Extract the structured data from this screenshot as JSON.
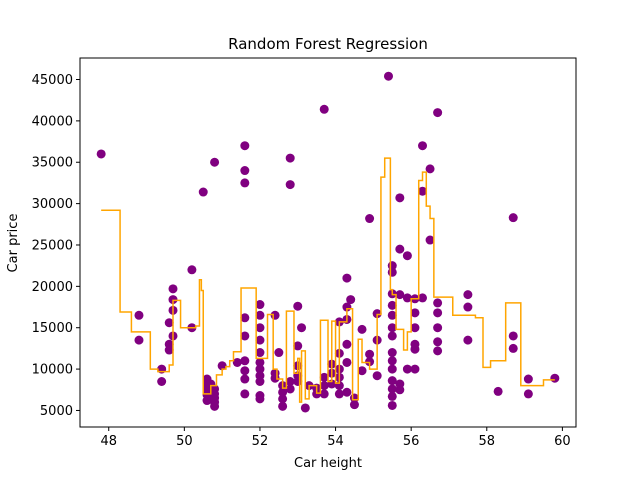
{
  "chart_data": {
    "type": "scatter",
    "title": "Random Forest Regression",
    "xlabel": "Car height",
    "ylabel": "Car price",
    "xlim": [
      47.24,
      60.36
    ],
    "ylim": [
      3000,
      47600
    ],
    "xticks": [
      48,
      50,
      52,
      54,
      56,
      58,
      60
    ],
    "yticks": [
      5000,
      10000,
      15000,
      20000,
      25000,
      30000,
      35000,
      40000,
      45000
    ],
    "grid": false,
    "colors": {
      "points": "#800080",
      "line": "#FFA500"
    },
    "series": [
      {
        "type": "scatter",
        "points": [
          [
            47.8,
            36000
          ],
          [
            48.8,
            16500
          ],
          [
            48.8,
            13500
          ],
          [
            49.4,
            10000
          ],
          [
            49.4,
            8500
          ],
          [
            49.6,
            15600
          ],
          [
            49.6,
            13000
          ],
          [
            49.6,
            12300
          ],
          [
            49.7,
            19700
          ],
          [
            49.7,
            18400
          ],
          [
            49.7,
            17100
          ],
          [
            49.7,
            14000
          ],
          [
            50.2,
            22000
          ],
          [
            50.2,
            15000
          ],
          [
            50.5,
            31400
          ],
          [
            50.6,
            8800
          ],
          [
            50.6,
            8000
          ],
          [
            50.6,
            7600
          ],
          [
            50.6,
            6900
          ],
          [
            50.6,
            6200
          ],
          [
            50.7,
            8200
          ],
          [
            50.8,
            35000
          ],
          [
            50.8,
            7600
          ],
          [
            50.8,
            7000
          ],
          [
            50.8,
            6500
          ],
          [
            50.8,
            6000
          ],
          [
            50.8,
            5500
          ],
          [
            51.0,
            10400
          ],
          [
            51.4,
            10800
          ],
          [
            51.6,
            37000
          ],
          [
            51.6,
            34000
          ],
          [
            51.6,
            32500
          ],
          [
            51.6,
            16200
          ],
          [
            51.6,
            14000
          ],
          [
            51.6,
            11000
          ],
          [
            51.6,
            9800
          ],
          [
            51.6,
            8800
          ],
          [
            51.6,
            7000
          ],
          [
            52.0,
            17800
          ],
          [
            52.0,
            16500
          ],
          [
            52.0,
            15000
          ],
          [
            52.0,
            13500
          ],
          [
            52.0,
            12000
          ],
          [
            52.0,
            10800
          ],
          [
            52.0,
            10000
          ],
          [
            52.0,
            9200
          ],
          [
            52.0,
            8500
          ],
          [
            52.0,
            6800
          ],
          [
            52.0,
            6400
          ],
          [
            52.4,
            16500
          ],
          [
            52.4,
            9500
          ],
          [
            52.4,
            8900
          ],
          [
            52.5,
            12000
          ],
          [
            52.6,
            8000
          ],
          [
            52.6,
            7200
          ],
          [
            52.6,
            6400
          ],
          [
            52.6,
            5500
          ],
          [
            52.8,
            35500
          ],
          [
            52.8,
            32300
          ],
          [
            52.8,
            8500
          ],
          [
            52.8,
            7600
          ],
          [
            53.0,
            17600
          ],
          [
            53.0,
            12800
          ],
          [
            53.0,
            10400
          ],
          [
            53.0,
            9200
          ],
          [
            53.0,
            8500
          ],
          [
            53.1,
            15000
          ],
          [
            53.2,
            5300
          ],
          [
            53.3,
            8000
          ],
          [
            53.5,
            7700
          ],
          [
            53.5,
            7000
          ],
          [
            53.7,
            41400
          ],
          [
            53.7,
            9000
          ],
          [
            53.7,
            8000
          ],
          [
            53.7,
            7000
          ],
          [
            53.9,
            10600
          ],
          [
            53.9,
            9500
          ],
          [
            53.9,
            8200
          ],
          [
            54.1,
            15700
          ],
          [
            54.1,
            11900
          ],
          [
            54.1,
            10000
          ],
          [
            54.1,
            9000
          ],
          [
            54.1,
            8000
          ],
          [
            54.1,
            7000
          ],
          [
            54.3,
            21000
          ],
          [
            54.3,
            17500
          ],
          [
            54.3,
            16000
          ],
          [
            54.3,
            13000
          ],
          [
            54.3,
            10800
          ],
          [
            54.3,
            7200
          ],
          [
            54.4,
            18400
          ],
          [
            54.5,
            5700
          ],
          [
            54.5,
            6500
          ],
          [
            54.7,
            14800
          ],
          [
            54.7,
            9800
          ],
          [
            54.9,
            28200
          ],
          [
            54.9,
            11800
          ],
          [
            54.9,
            10900
          ],
          [
            55.1,
            16700
          ],
          [
            55.1,
            13500
          ],
          [
            55.1,
            9200
          ],
          [
            55.4,
            45400
          ],
          [
            55.5,
            22500
          ],
          [
            55.5,
            21700
          ],
          [
            55.5,
            19100
          ],
          [
            55.5,
            17700
          ],
          [
            55.5,
            16500
          ],
          [
            55.5,
            15000
          ],
          [
            55.5,
            14000
          ],
          [
            55.5,
            12000
          ],
          [
            55.5,
            11000
          ],
          [
            55.5,
            10000
          ],
          [
            55.5,
            8600
          ],
          [
            55.5,
            7600
          ],
          [
            55.5,
            6700
          ],
          [
            55.5,
            5600
          ],
          [
            55.7,
            30700
          ],
          [
            55.7,
            24500
          ],
          [
            55.7,
            19000
          ],
          [
            55.7,
            8200
          ],
          [
            55.7,
            7500
          ],
          [
            55.9,
            23700
          ],
          [
            55.9,
            18600
          ],
          [
            55.9,
            10000
          ],
          [
            56.1,
            18500
          ],
          [
            56.1,
            16800
          ],
          [
            56.1,
            15000
          ],
          [
            56.1,
            13000
          ],
          [
            56.1,
            12400
          ],
          [
            56.1,
            10000
          ],
          [
            56.3,
            37000
          ],
          [
            56.3,
            31500
          ],
          [
            56.3,
            18600
          ],
          [
            56.5,
            34200
          ],
          [
            56.5,
            25600
          ],
          [
            56.7,
            41000
          ],
          [
            56.7,
            18000
          ],
          [
            56.7,
            16800
          ],
          [
            56.7,
            15000
          ],
          [
            56.7,
            13300
          ],
          [
            56.7,
            12200
          ],
          [
            57.5,
            19000
          ],
          [
            57.5,
            17500
          ],
          [
            57.5,
            13500
          ],
          [
            58.3,
            7300
          ],
          [
            58.7,
            28300
          ],
          [
            58.7,
            14000
          ],
          [
            58.7,
            12500
          ],
          [
            59.1,
            8800
          ],
          [
            59.1,
            7000
          ],
          [
            59.8,
            8900
          ]
        ]
      },
      {
        "type": "step",
        "points": [
          [
            47.8,
            29200
          ],
          [
            48.3,
            29200
          ],
          [
            48.3,
            16900
          ],
          [
            48.6,
            16900
          ],
          [
            48.6,
            14500
          ],
          [
            49.1,
            14500
          ],
          [
            49.1,
            10000
          ],
          [
            49.3,
            10000
          ],
          [
            49.3,
            9700
          ],
          [
            49.6,
            9700
          ],
          [
            49.6,
            10500
          ],
          [
            49.7,
            10500
          ],
          [
            49.7,
            18300
          ],
          [
            49.9,
            18300
          ],
          [
            49.9,
            15000
          ],
          [
            50.3,
            15000
          ],
          [
            50.3,
            15200
          ],
          [
            50.4,
            15200
          ],
          [
            50.4,
            20800
          ],
          [
            50.45,
            20800
          ],
          [
            50.45,
            19500
          ],
          [
            50.5,
            19500
          ],
          [
            50.5,
            7000
          ],
          [
            50.7,
            7000
          ],
          [
            50.7,
            8000
          ],
          [
            50.85,
            8000
          ],
          [
            50.85,
            9300
          ],
          [
            51.0,
            9300
          ],
          [
            51.0,
            10000
          ],
          [
            51.1,
            10000
          ],
          [
            51.1,
            10300
          ],
          [
            51.2,
            10300
          ],
          [
            51.2,
            11000
          ],
          [
            51.3,
            11000
          ],
          [
            51.3,
            12100
          ],
          [
            51.5,
            12100
          ],
          [
            51.5,
            19800
          ],
          [
            51.9,
            19800
          ],
          [
            51.9,
            11300
          ],
          [
            52.2,
            11300
          ],
          [
            52.2,
            16600
          ],
          [
            52.35,
            16600
          ],
          [
            52.35,
            10000
          ],
          [
            52.45,
            10000
          ],
          [
            52.45,
            8800
          ],
          [
            52.6,
            8800
          ],
          [
            52.6,
            7700
          ],
          [
            52.7,
            7700
          ],
          [
            52.7,
            17000
          ],
          [
            52.9,
            17000
          ],
          [
            52.9,
            9500
          ],
          [
            53.0,
            9500
          ],
          [
            53.0,
            11300
          ],
          [
            53.05,
            11300
          ],
          [
            53.05,
            6000
          ],
          [
            53.1,
            6000
          ],
          [
            53.1,
            12200
          ],
          [
            53.2,
            12200
          ],
          [
            53.2,
            6400
          ],
          [
            53.3,
            6400
          ],
          [
            53.3,
            8000
          ],
          [
            53.5,
            8000
          ],
          [
            53.5,
            7100
          ],
          [
            53.6,
            7100
          ],
          [
            53.6,
            15900
          ],
          [
            53.8,
            15900
          ],
          [
            53.8,
            8500
          ],
          [
            53.9,
            8500
          ],
          [
            53.9,
            15800
          ],
          [
            54.0,
            15800
          ],
          [
            54.0,
            8300
          ],
          [
            54.1,
            8300
          ],
          [
            54.1,
            15700
          ],
          [
            54.3,
            15700
          ],
          [
            54.3,
            17300
          ],
          [
            54.45,
            17300
          ],
          [
            54.45,
            6300
          ],
          [
            54.6,
            6300
          ],
          [
            54.6,
            13600
          ],
          [
            54.7,
            13600
          ],
          [
            54.7,
            10800
          ],
          [
            54.9,
            10800
          ],
          [
            54.9,
            10000
          ],
          [
            55.1,
            10000
          ],
          [
            55.1,
            16600
          ],
          [
            55.2,
            16600
          ],
          [
            55.2,
            33200
          ],
          [
            55.3,
            33200
          ],
          [
            55.3,
            35500
          ],
          [
            55.45,
            35500
          ],
          [
            55.45,
            19600
          ],
          [
            55.5,
            19600
          ],
          [
            55.5,
            19000
          ],
          [
            55.6,
            19000
          ],
          [
            55.6,
            14800
          ],
          [
            55.8,
            14800
          ],
          [
            55.8,
            12300
          ],
          [
            55.9,
            12300
          ],
          [
            55.9,
            14500
          ],
          [
            56.0,
            14500
          ],
          [
            56.0,
            18500
          ],
          [
            56.2,
            18500
          ],
          [
            56.2,
            32800
          ],
          [
            56.3,
            32800
          ],
          [
            56.3,
            33800
          ],
          [
            56.4,
            33800
          ],
          [
            56.4,
            29700
          ],
          [
            56.5,
            29700
          ],
          [
            56.5,
            28200
          ],
          [
            56.6,
            28200
          ],
          [
            56.6,
            18700
          ],
          [
            57.1,
            18700
          ],
          [
            57.1,
            16500
          ],
          [
            57.7,
            16500
          ],
          [
            57.7,
            16200
          ],
          [
            57.9,
            16200
          ],
          [
            57.9,
            10200
          ],
          [
            58.1,
            10200
          ],
          [
            58.1,
            11000
          ],
          [
            58.5,
            11000
          ],
          [
            58.5,
            18000
          ],
          [
            58.9,
            18000
          ],
          [
            58.9,
            8000
          ],
          [
            59.5,
            8000
          ],
          [
            59.5,
            8700
          ],
          [
            59.8,
            8700
          ]
        ]
      }
    ]
  }
}
